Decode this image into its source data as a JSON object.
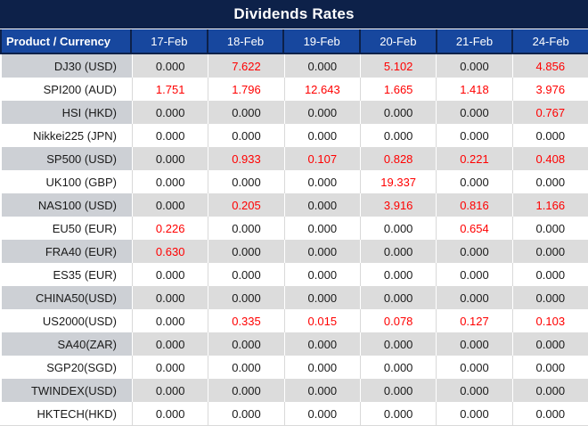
{
  "title": "Dividends Rates",
  "table": {
    "product_header": "Product / Currency",
    "date_columns": [
      "17-Feb",
      "18-Feb",
      "19-Feb",
      "20-Feb",
      "21-Feb",
      "24-Feb"
    ],
    "rows": [
      {
        "product": "DJ30 (USD)",
        "values": [
          "0.000",
          "7.622",
          "0.000",
          "5.102",
          "0.000",
          "4.856"
        ]
      },
      {
        "product": "SPI200 (AUD)",
        "values": [
          "1.751",
          "1.796",
          "12.643",
          "1.665",
          "1.418",
          "3.976"
        ]
      },
      {
        "product": "HSI (HKD)",
        "values": [
          "0.000",
          "0.000",
          "0.000",
          "0.000",
          "0.000",
          "0.767"
        ]
      },
      {
        "product": "Nikkei225 (JPN)",
        "values": [
          "0.000",
          "0.000",
          "0.000",
          "0.000",
          "0.000",
          "0.000"
        ]
      },
      {
        "product": "SP500 (USD)",
        "values": [
          "0.000",
          "0.933",
          "0.107",
          "0.828",
          "0.221",
          "0.408"
        ]
      },
      {
        "product": "UK100 (GBP)",
        "values": [
          "0.000",
          "0.000",
          "0.000",
          "19.337",
          "0.000",
          "0.000"
        ]
      },
      {
        "product": "NAS100 (USD)",
        "values": [
          "0.000",
          "0.205",
          "0.000",
          "3.916",
          "0.816",
          "1.166"
        ]
      },
      {
        "product": "EU50 (EUR)",
        "values": [
          "0.226",
          "0.000",
          "0.000",
          "0.000",
          "0.654",
          "0.000"
        ]
      },
      {
        "product": "FRA40 (EUR)",
        "values": [
          "0.630",
          "0.000",
          "0.000",
          "0.000",
          "0.000",
          "0.000"
        ]
      },
      {
        "product": "ES35 (EUR)",
        "values": [
          "0.000",
          "0.000",
          "0.000",
          "0.000",
          "0.000",
          "0.000"
        ]
      },
      {
        "product": "CHINA50(USD)",
        "values": [
          "0.000",
          "0.000",
          "0.000",
          "0.000",
          "0.000",
          "0.000"
        ]
      },
      {
        "product": "US2000(USD)",
        "values": [
          "0.000",
          "0.335",
          "0.015",
          "0.078",
          "0.127",
          "0.103"
        ]
      },
      {
        "product": "SA40(ZAR)",
        "values": [
          "0.000",
          "0.000",
          "0.000",
          "0.000",
          "0.000",
          "0.000"
        ]
      },
      {
        "product": "SGP20(SGD)",
        "values": [
          "0.000",
          "0.000",
          "0.000",
          "0.000",
          "0.000",
          "0.000"
        ]
      },
      {
        "product": "TWINDEX(USD)",
        "values": [
          "0.000",
          "0.000",
          "0.000",
          "0.000",
          "0.000",
          "0.000"
        ]
      },
      {
        "product": "HKTECH(HKD)",
        "values": [
          "0.000",
          "0.000",
          "0.000",
          "0.000",
          "0.000",
          "0.000"
        ]
      }
    ]
  },
  "chart_data": {
    "type": "table",
    "title": "Dividends Rates",
    "row_header_label": "Product / Currency",
    "categories": [
      "17-Feb",
      "18-Feb",
      "19-Feb",
      "20-Feb",
      "21-Feb",
      "24-Feb"
    ],
    "series": [
      {
        "name": "DJ30 (USD)",
        "values": [
          0.0,
          7.622,
          0.0,
          5.102,
          0.0,
          4.856
        ]
      },
      {
        "name": "SPI200 (AUD)",
        "values": [
          1.751,
          1.796,
          12.643,
          1.665,
          1.418,
          3.976
        ]
      },
      {
        "name": "HSI (HKD)",
        "values": [
          0.0,
          0.0,
          0.0,
          0.0,
          0.0,
          0.767
        ]
      },
      {
        "name": "Nikkei225 (JPN)",
        "values": [
          0.0,
          0.0,
          0.0,
          0.0,
          0.0,
          0.0
        ]
      },
      {
        "name": "SP500 (USD)",
        "values": [
          0.0,
          0.933,
          0.107,
          0.828,
          0.221,
          0.408
        ]
      },
      {
        "name": "UK100 (GBP)",
        "values": [
          0.0,
          0.0,
          0.0,
          19.337,
          0.0,
          0.0
        ]
      },
      {
        "name": "NAS100 (USD)",
        "values": [
          0.0,
          0.205,
          0.0,
          3.916,
          0.816,
          1.166
        ]
      },
      {
        "name": "EU50 (EUR)",
        "values": [
          0.226,
          0.0,
          0.0,
          0.0,
          0.654,
          0.0
        ]
      },
      {
        "name": "FRA40 (EUR)",
        "values": [
          0.63,
          0.0,
          0.0,
          0.0,
          0.0,
          0.0
        ]
      },
      {
        "name": "ES35 (EUR)",
        "values": [
          0.0,
          0.0,
          0.0,
          0.0,
          0.0,
          0.0
        ]
      },
      {
        "name": "CHINA50(USD)",
        "values": [
          0.0,
          0.0,
          0.0,
          0.0,
          0.0,
          0.0
        ]
      },
      {
        "name": "US2000(USD)",
        "values": [
          0.0,
          0.335,
          0.015,
          0.078,
          0.127,
          0.103
        ]
      },
      {
        "name": "SA40(ZAR)",
        "values": [
          0.0,
          0.0,
          0.0,
          0.0,
          0.0,
          0.0
        ]
      },
      {
        "name": "SGP20(SGD)",
        "values": [
          0.0,
          0.0,
          0.0,
          0.0,
          0.0,
          0.0
        ]
      },
      {
        "name": "TWINDEX(USD)",
        "values": [
          0.0,
          0.0,
          0.0,
          0.0,
          0.0,
          0.0
        ]
      },
      {
        "name": "HKTECH(HKD)",
        "values": [
          0.0,
          0.0,
          0.0,
          0.0,
          0.0,
          0.0
        ]
      }
    ],
    "value_color_rule": "zero values black, non-zero values red",
    "colors": {
      "title_bg": "#0D2149",
      "header_bg": "#17479E",
      "header_divider": "#0D2149",
      "nonzero_value": "#FF0000",
      "zero_value": "#1A1A1A",
      "gray_row_product_bg": "#CDD0D5",
      "gray_row_value_bg": "#DCDCDC",
      "white_row_bg": "#FFFFFF"
    }
  }
}
